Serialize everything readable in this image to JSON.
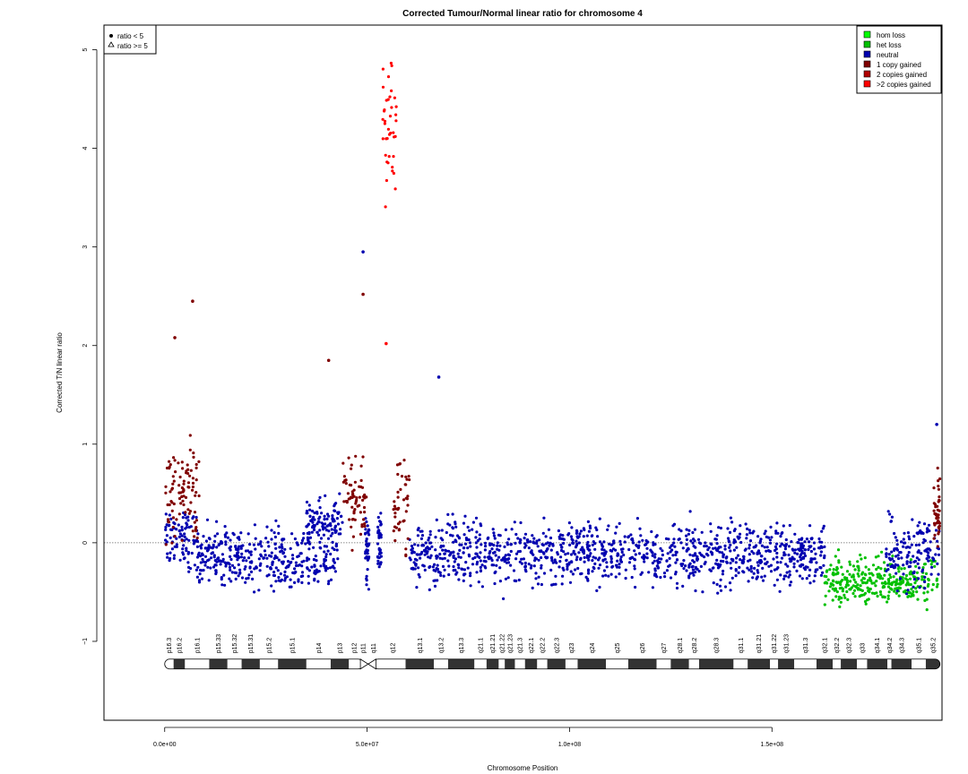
{
  "chart_data": {
    "type": "scatter",
    "title": "Corrected Tumour/Normal linear ratio for chromosome  4",
    "xlabel": "Chromosome Position",
    "ylabel": "Corrected T/N linear ratio",
    "xlim": [
      -15000000,
      192000000
    ],
    "ylim": [
      -1.8,
      5.25
    ],
    "x_ticks": [
      {
        "value": 0,
        "label": "0.0e+00"
      },
      {
        "value": 50000000,
        "label": "5.0e+07"
      },
      {
        "value": 100000000,
        "label": "1.0e+08"
      },
      {
        "value": 150000000,
        "label": "1.5e+08"
      }
    ],
    "y_ticks": [
      {
        "value": -1,
        "label": "−1"
      },
      {
        "value": 0,
        "label": "0"
      },
      {
        "value": 1,
        "label": "1"
      },
      {
        "value": 2,
        "label": "2"
      },
      {
        "value": 3,
        "label": "3"
      },
      {
        "value": 4,
        "label": "4"
      },
      {
        "value": 5,
        "label": "5"
      }
    ],
    "reference_line": 0,
    "shape_legend": {
      "placement": "top-left",
      "entries": [
        {
          "symbol": "dot",
          "label": "ratio < 5"
        },
        {
          "symbol": "triangle",
          "label": "ratio >= 5"
        }
      ]
    },
    "color_legend": {
      "placement": "top-right",
      "entries": [
        {
          "label": "hom loss",
          "color": "#00ff00"
        },
        {
          "label": "het loss",
          "color": "#00c000"
        },
        {
          "label": "neutral",
          "color": "#0000b0"
        },
        {
          "label": "1 copy gained",
          "color": "#800000"
        },
        {
          "label": "2 copies gained",
          "color": "#b00000"
        },
        {
          "label": ">2 copies gained",
          "color": "#ff0000"
        }
      ]
    },
    "series": [
      {
        "name": "het loss",
        "color": "#00c000",
        "segments": [
          {
            "x": [
              163000000,
              191000000
            ],
            "mean": -0.4,
            "spread": 0.16
          }
        ]
      },
      {
        "name": "neutral",
        "color": "#0000b0",
        "segments": [
          {
            "x": [
              0,
              8000000
            ],
            "mean": 0.05,
            "spread": 0.22
          },
          {
            "x": [
              8000000,
              43000000
            ],
            "mean": -0.15,
            "spread": 0.22
          },
          {
            "x": [
              35000000,
              44000000
            ],
            "mean": 0.2,
            "spread": 0.18
          },
          {
            "x": [
              49500000,
              50500000
            ],
            "mean": -0.1,
            "spread": 0.3
          },
          {
            "x": [
              52500000,
              53500000
            ],
            "mean": 0.0,
            "spread": 0.25
          },
          {
            "x": [
              60500000,
              163000000
            ],
            "mean": -0.12,
            "spread": 0.22
          },
          {
            "x": [
              178000000,
              191500000
            ],
            "mean": -0.1,
            "spread": 0.25
          }
        ]
      },
      {
        "name": "1 copy gained",
        "color": "#800000",
        "segments": [
          {
            "x": [
              0,
              8500000
            ],
            "mean": 0.5,
            "spread": 0.35
          },
          {
            "x": [
              44000000,
              50000000
            ],
            "mean": 0.45,
            "spread": 0.3
          },
          {
            "x": [
              56500000,
              60500000
            ],
            "mean": 0.4,
            "spread": 0.3
          },
          {
            "x": [
              190000000,
              191500000
            ],
            "mean": 0.3,
            "spread": 0.25
          }
        ]
      },
      {
        "name": ">2 copies gained",
        "color": "#ff0000",
        "segments": [
          {
            "x": [
              53800000,
              57200000
            ],
            "mean": 4.4,
            "spread": 0.6
          }
        ]
      }
    ],
    "annotated_points": [
      {
        "x": 49000000,
        "y": 2.95,
        "color": "#0000b0"
      },
      {
        "x": 49000000,
        "y": 2.52,
        "color": "#800000"
      },
      {
        "x": 54700000,
        "y": 2.02,
        "color": "#ff0000"
      },
      {
        "x": 6900000,
        "y": 2.45,
        "color": "#800000"
      },
      {
        "x": 2500000,
        "y": 2.08,
        "color": "#800000"
      },
      {
        "x": 40500000,
        "y": 1.85,
        "color": "#800000"
      },
      {
        "x": 67700000,
        "y": 1.68,
        "color": "#0000b0"
      },
      {
        "x": 190700000,
        "y": 1.2,
        "color": "#0000b0"
      }
    ],
    "ideogram": {
      "length": 191500000,
      "centromere": [
        49000000,
        51500000
      ],
      "bands": [
        {
          "name": "p16.3",
          "start": 0,
          "end": 2200000,
          "stain": "gneg"
        },
        {
          "name": "p16.2",
          "start": 2200000,
          "end": 5000000,
          "stain": "gpos"
        },
        {
          "name": "p16.1",
          "start": 5000000,
          "end": 11000000,
          "stain": "gneg"
        },
        {
          "name": "p15.33",
          "start": 11000000,
          "end": 15500000,
          "stain": "gpos"
        },
        {
          "name": "p15.32",
          "start": 15500000,
          "end": 19000000,
          "stain": "gneg"
        },
        {
          "name": "p15.31",
          "start": 19000000,
          "end": 23500000,
          "stain": "gpos"
        },
        {
          "name": "p15.2",
          "start": 23500000,
          "end": 28000000,
          "stain": "gneg"
        },
        {
          "name": "p15.1",
          "start": 28000000,
          "end": 35000000,
          "stain": "gpos"
        },
        {
          "name": "p14",
          "start": 35000000,
          "end": 41000000,
          "stain": "gneg"
        },
        {
          "name": "p13",
          "start": 41000000,
          "end": 45500000,
          "stain": "gpos"
        },
        {
          "name": "p12",
          "start": 45500000,
          "end": 48000000,
          "stain": "gneg"
        },
        {
          "name": "p11",
          "start": 48000000,
          "end": 50000000,
          "stain": "acen"
        },
        {
          "name": "q11",
          "start": 50000000,
          "end": 53000000,
          "stain": "acen"
        },
        {
          "name": "q12",
          "start": 53000000,
          "end": 59500000,
          "stain": "gneg"
        },
        {
          "name": "q13.1",
          "start": 59500000,
          "end": 66500000,
          "stain": "gpos"
        },
        {
          "name": "q13.2",
          "start": 66500000,
          "end": 70000000,
          "stain": "gneg"
        },
        {
          "name": "q13.3",
          "start": 70000000,
          "end": 76500000,
          "stain": "gpos"
        },
        {
          "name": "q21.1",
          "start": 76500000,
          "end": 79500000,
          "stain": "gneg"
        },
        {
          "name": "q21.21",
          "start": 79500000,
          "end": 82500000,
          "stain": "gpos"
        },
        {
          "name": "q21.22",
          "start": 82500000,
          "end": 84000000,
          "stain": "gneg"
        },
        {
          "name": "q21.23",
          "start": 84000000,
          "end": 86500000,
          "stain": "gpos"
        },
        {
          "name": "q21.3",
          "start": 86500000,
          "end": 89000000,
          "stain": "gneg"
        },
        {
          "name": "q22.1",
          "start": 89000000,
          "end": 92000000,
          "stain": "gpos"
        },
        {
          "name": "q22.2",
          "start": 92000000,
          "end": 94500000,
          "stain": "gneg"
        },
        {
          "name": "q22.3",
          "start": 94500000,
          "end": 99000000,
          "stain": "gpos"
        },
        {
          "name": "q23",
          "start": 99000000,
          "end": 102000000,
          "stain": "gneg"
        },
        {
          "name": "q24",
          "start": 102000000,
          "end": 109000000,
          "stain": "gpos"
        },
        {
          "name": "q25",
          "start": 109000000,
          "end": 114500000,
          "stain": "gneg"
        },
        {
          "name": "q26",
          "start": 114500000,
          "end": 121500000,
          "stain": "gpos"
        },
        {
          "name": "q27",
          "start": 121500000,
          "end": 125000000,
          "stain": "gneg"
        },
        {
          "name": "q28.1",
          "start": 125000000,
          "end": 129500000,
          "stain": "gpos"
        },
        {
          "name": "q28.2",
          "start": 129500000,
          "end": 132000000,
          "stain": "gneg"
        },
        {
          "name": "q28.3",
          "start": 132000000,
          "end": 140500000,
          "stain": "gpos"
        },
        {
          "name": "q31.1",
          "start": 140500000,
          "end": 144000000,
          "stain": "gneg"
        },
        {
          "name": "q31.21",
          "start": 144000000,
          "end": 149500000,
          "stain": "gpos"
        },
        {
          "name": "q31.22",
          "start": 149500000,
          "end": 151500000,
          "stain": "gneg"
        },
        {
          "name": "q31.23",
          "start": 151500000,
          "end": 155500000,
          "stain": "gpos"
        },
        {
          "name": "q31.3",
          "start": 155500000,
          "end": 161000000,
          "stain": "gneg"
        },
        {
          "name": "q32.1",
          "start": 161000000,
          "end": 165000000,
          "stain": "gpos"
        },
        {
          "name": "q32.2",
          "start": 165000000,
          "end": 167000000,
          "stain": "gneg"
        },
        {
          "name": "q32.3",
          "start": 167000000,
          "end": 171000000,
          "stain": "gpos"
        },
        {
          "name": "q33",
          "start": 171000000,
          "end": 173500000,
          "stain": "gneg"
        },
        {
          "name": "q34.1",
          "start": 173500000,
          "end": 178500000,
          "stain": "gpos"
        },
        {
          "name": "q34.2",
          "start": 178500000,
          "end": 179500000,
          "stain": "gneg"
        },
        {
          "name": "q34.3",
          "start": 179500000,
          "end": 184500000,
          "stain": "gpos"
        },
        {
          "name": "q35.1",
          "start": 184500000,
          "end": 188000000,
          "stain": "gneg"
        },
        {
          "name": "q35.2",
          "start": 188000000,
          "end": 191500000,
          "stain": "gpos"
        }
      ]
    }
  }
}
